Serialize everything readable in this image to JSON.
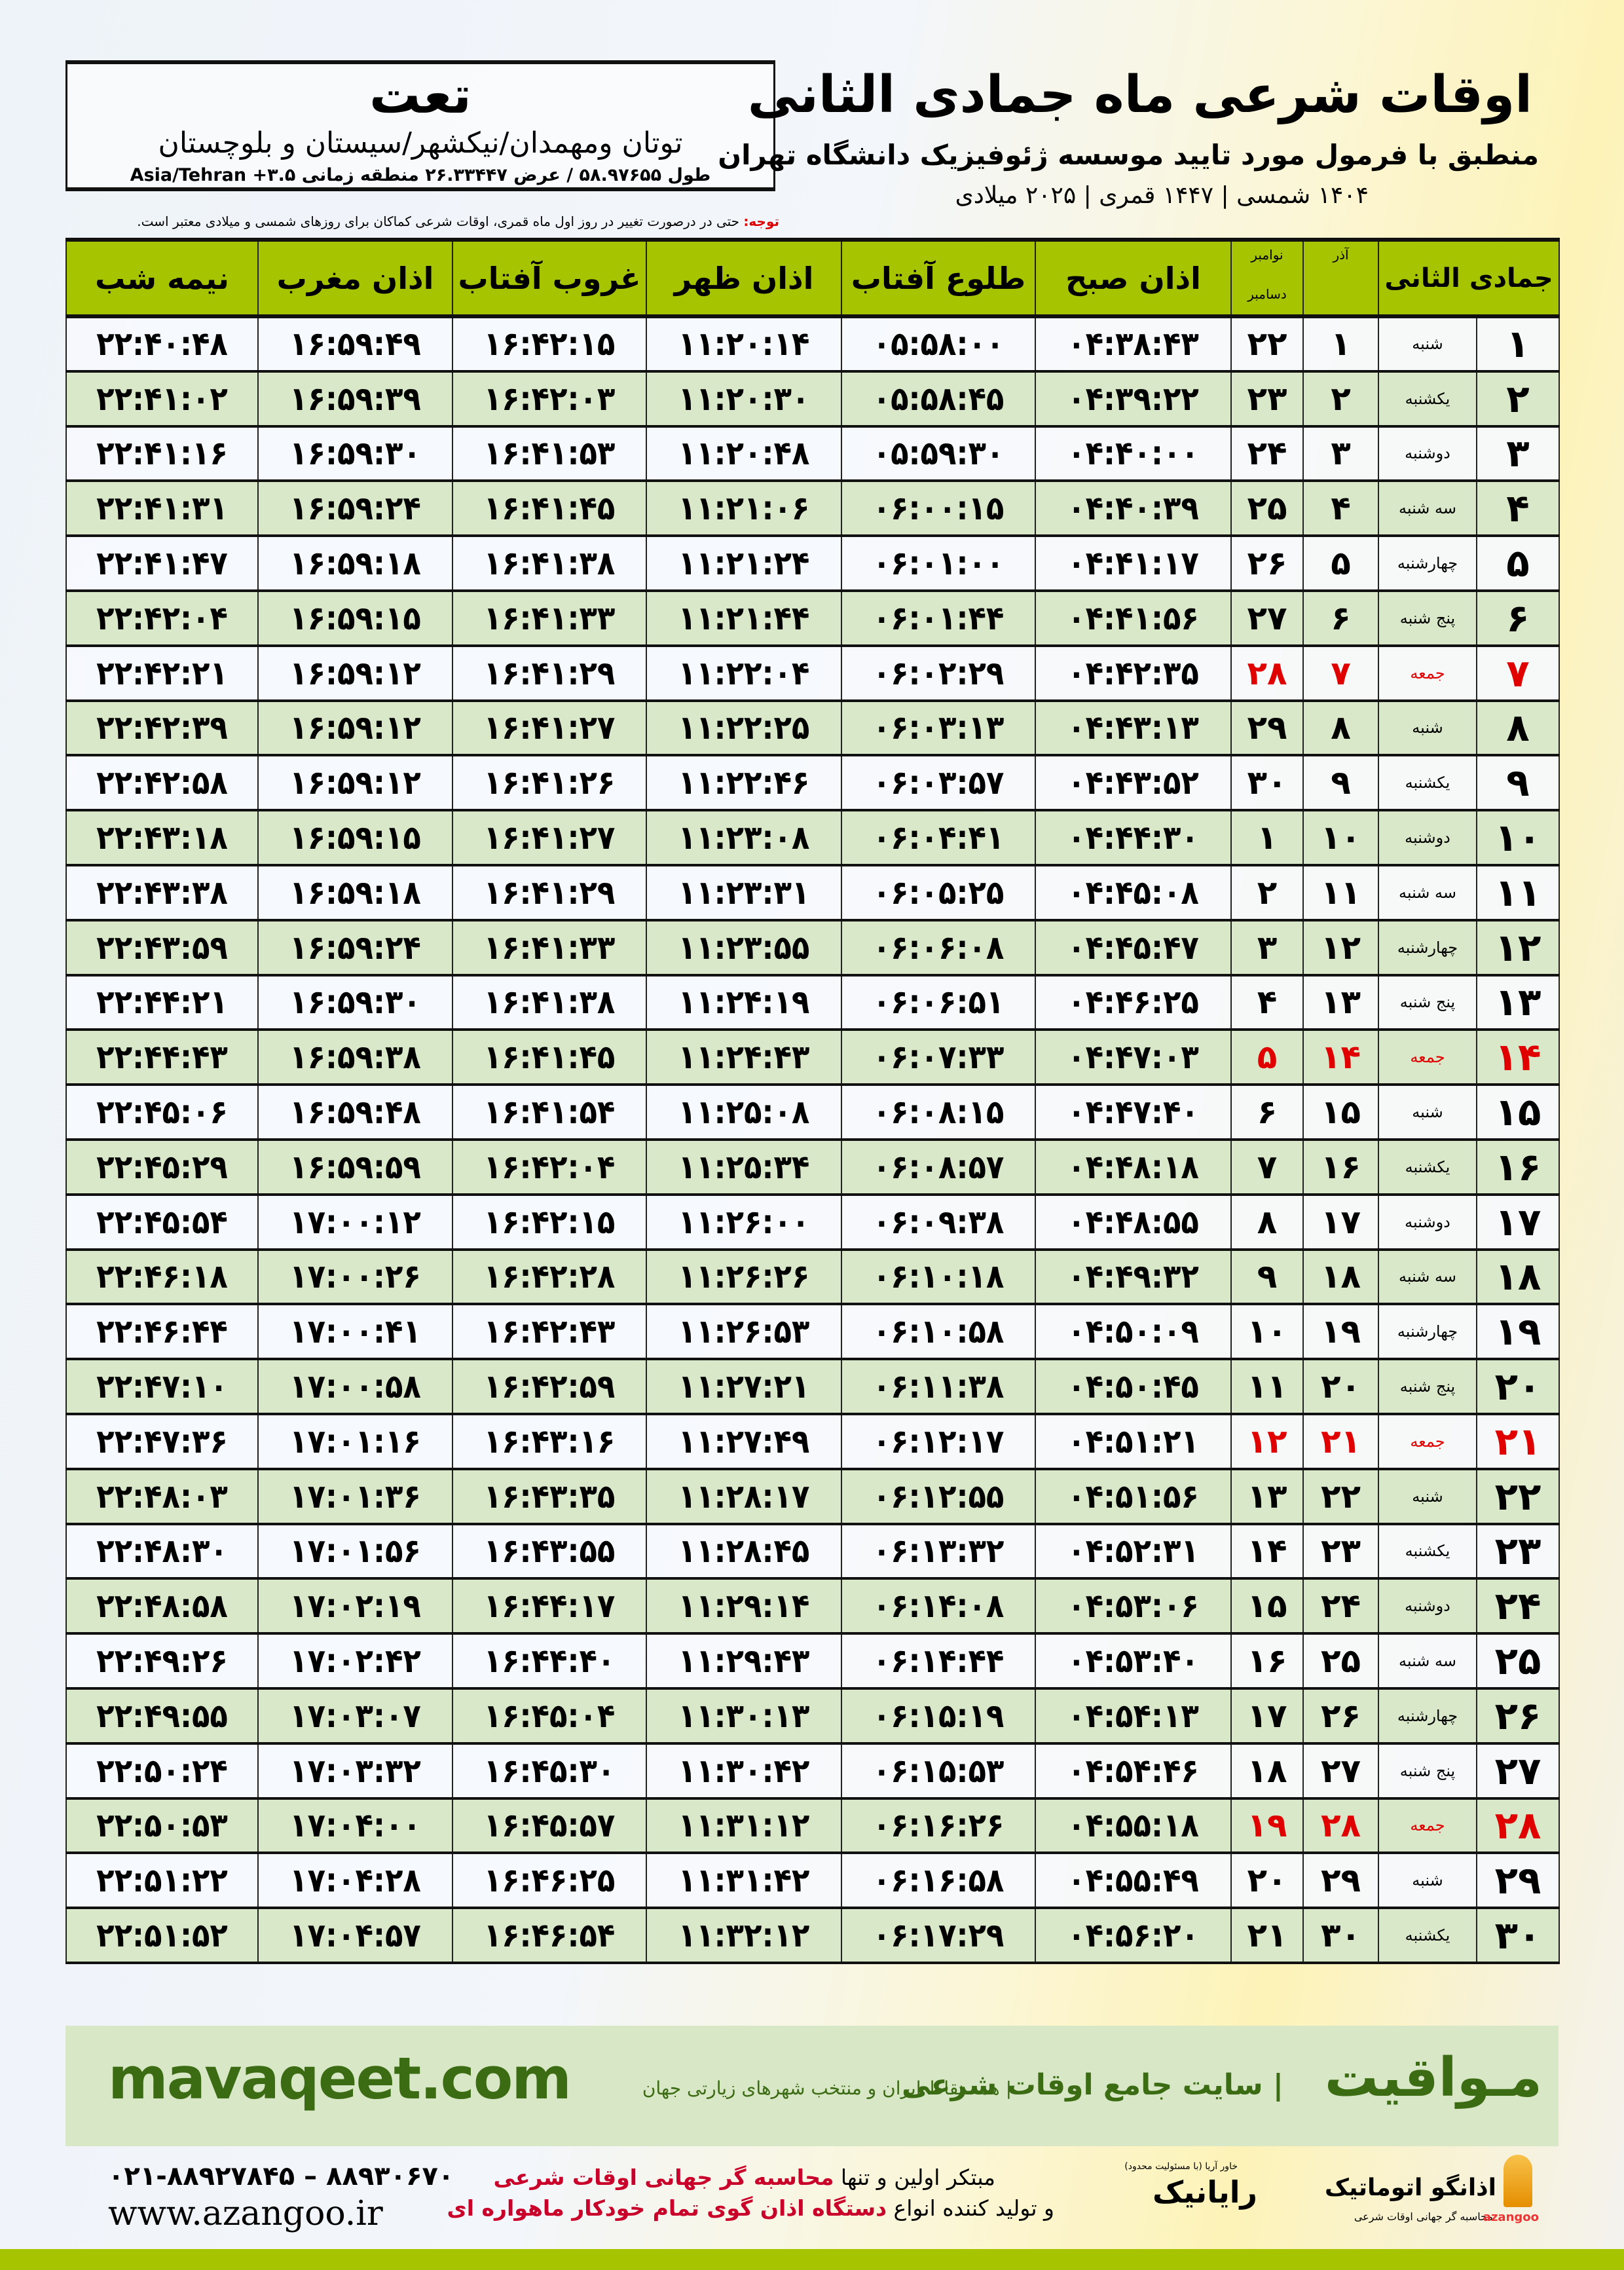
{
  "header": {
    "title": "اوقات شرعی ماه جمادی الثانی",
    "subtitle": "منطبق با فرمول مورد تایید موسسه ژئوفیزیک دانشگاه تهران",
    "years": "۱۴۰۴ شمسی | ۱۴۴۷ قمری | ۲۰۲۵ میلادی"
  },
  "location": {
    "city": "تعت",
    "region": "توتان ومهمدان/نیکشهر/سیستان و بلوچستان",
    "coords": "طول ۵۸.۹۷۶۵۵ / عرض ۲۶.۳۳۴۴۷ منطقه زمانی ۳.۵+ Asia/Tehran"
  },
  "note": {
    "label": "توجه:",
    "text": " حتی در درصورت تغییر در روز اول ماه قمری، اوقات شرعی کماکان برای روزهای شمسی و میلادی معتبر است."
  },
  "colors": {
    "header_green": "#a6c400",
    "row_alt": "#d9e8c8",
    "friday": "#e00000",
    "brand_green": "#3b6b12"
  },
  "table": {
    "headers": {
      "day": "جمادی الثانی",
      "azar": "آذر",
      "nov": "نوامبر",
      "dec": "دسامبر",
      "sobh": "اذان صبح",
      "tolu": "طلوع آفتاب",
      "zohr": "اذان ظهر",
      "ghorub": "غروب آفتاب",
      "maghreb": "اذان مغرب",
      "nime": "نیمه شب"
    },
    "rows": [
      [
        "۱",
        "شنبه",
        "۱",
        "۲۲",
        "۰۴:۳۸:۴۳",
        "۰۵:۵۸:۰۰",
        "۱۱:۲۰:۱۴",
        "۱۶:۴۲:۱۵",
        "۱۶:۵۹:۴۹",
        "۲۲:۴۰:۴۸"
      ],
      [
        "۲",
        "یکشنبه",
        "۲",
        "۲۳",
        "۰۴:۳۹:۲۲",
        "۰۵:۵۸:۴۵",
        "۱۱:۲۰:۳۰",
        "۱۶:۴۲:۰۳",
        "۱۶:۵۹:۳۹",
        "۲۲:۴۱:۰۲"
      ],
      [
        "۳",
        "دوشنبه",
        "۳",
        "۲۴",
        "۰۴:۴۰:۰۰",
        "۰۵:۵۹:۳۰",
        "۱۱:۲۰:۴۸",
        "۱۶:۴۱:۵۳",
        "۱۶:۵۹:۳۰",
        "۲۲:۴۱:۱۶"
      ],
      [
        "۴",
        "سه شنبه",
        "۴",
        "۲۵",
        "۰۴:۴۰:۳۹",
        "۰۶:۰۰:۱۵",
        "۱۱:۲۱:۰۶",
        "۱۶:۴۱:۴۵",
        "۱۶:۵۹:۲۴",
        "۲۲:۴۱:۳۱"
      ],
      [
        "۵",
        "چهارشنبه",
        "۵",
        "۲۶",
        "۰۴:۴۱:۱۷",
        "۰۶:۰۱:۰۰",
        "۱۱:۲۱:۲۴",
        "۱۶:۴۱:۳۸",
        "۱۶:۵۹:۱۸",
        "۲۲:۴۱:۴۷"
      ],
      [
        "۶",
        "پنج شنبه",
        "۶",
        "۲۷",
        "۰۴:۴۱:۵۶",
        "۰۶:۰۱:۴۴",
        "۱۱:۲۱:۴۴",
        "۱۶:۴۱:۳۳",
        "۱۶:۵۹:۱۵",
        "۲۲:۴۲:۰۴"
      ],
      [
        "۷",
        "جمعه",
        "۷",
        "۲۸",
        "۰۴:۴۲:۳۵",
        "۰۶:۰۲:۲۹",
        "۱۱:۲۲:۰۴",
        "۱۶:۴۱:۲۹",
        "۱۶:۵۹:۱۲",
        "۲۲:۴۲:۲۱"
      ],
      [
        "۸",
        "شنبه",
        "۸",
        "۲۹",
        "۰۴:۴۳:۱۳",
        "۰۶:۰۳:۱۳",
        "۱۱:۲۲:۲۵",
        "۱۶:۴۱:۲۷",
        "۱۶:۵۹:۱۲",
        "۲۲:۴۲:۳۹"
      ],
      [
        "۹",
        "یکشنبه",
        "۹",
        "۳۰",
        "۰۴:۴۳:۵۲",
        "۰۶:۰۳:۵۷",
        "۱۱:۲۲:۴۶",
        "۱۶:۴۱:۲۶",
        "۱۶:۵۹:۱۲",
        "۲۲:۴۲:۵۸"
      ],
      [
        "۱۰",
        "دوشنبه",
        "۱۰",
        "۱",
        "۰۴:۴۴:۳۰",
        "۰۶:۰۴:۴۱",
        "۱۱:۲۳:۰۸",
        "۱۶:۴۱:۲۷",
        "۱۶:۵۹:۱۵",
        "۲۲:۴۳:۱۸"
      ],
      [
        "۱۱",
        "سه شنبه",
        "۱۱",
        "۲",
        "۰۴:۴۵:۰۸",
        "۰۶:۰۵:۲۵",
        "۱۱:۲۳:۳۱",
        "۱۶:۴۱:۲۹",
        "۱۶:۵۹:۱۸",
        "۲۲:۴۳:۳۸"
      ],
      [
        "۱۲",
        "چهارشنبه",
        "۱۲",
        "۳",
        "۰۴:۴۵:۴۷",
        "۰۶:۰۶:۰۸",
        "۱۱:۲۳:۵۵",
        "۱۶:۴۱:۳۳",
        "۱۶:۵۹:۲۴",
        "۲۲:۴۳:۵۹"
      ],
      [
        "۱۳",
        "پنج شنبه",
        "۱۳",
        "۴",
        "۰۴:۴۶:۲۵",
        "۰۶:۰۶:۵۱",
        "۱۱:۲۴:۱۹",
        "۱۶:۴۱:۳۸",
        "۱۶:۵۹:۳۰",
        "۲۲:۴۴:۲۱"
      ],
      [
        "۱۴",
        "جمعه",
        "۱۴",
        "۵",
        "۰۴:۴۷:۰۳",
        "۰۶:۰۷:۳۳",
        "۱۱:۲۴:۴۳",
        "۱۶:۴۱:۴۵",
        "۱۶:۵۹:۳۸",
        "۲۲:۴۴:۴۳"
      ],
      [
        "۱۵",
        "شنبه",
        "۱۵",
        "۶",
        "۰۴:۴۷:۴۰",
        "۰۶:۰۸:۱۵",
        "۱۱:۲۵:۰۸",
        "۱۶:۴۱:۵۴",
        "۱۶:۵۹:۴۸",
        "۲۲:۴۵:۰۶"
      ],
      [
        "۱۶",
        "یکشنبه",
        "۱۶",
        "۷",
        "۰۴:۴۸:۱۸",
        "۰۶:۰۸:۵۷",
        "۱۱:۲۵:۳۴",
        "۱۶:۴۲:۰۴",
        "۱۶:۵۹:۵۹",
        "۲۲:۴۵:۲۹"
      ],
      [
        "۱۷",
        "دوشنبه",
        "۱۷",
        "۸",
        "۰۴:۴۸:۵۵",
        "۰۶:۰۹:۳۸",
        "۱۱:۲۶:۰۰",
        "۱۶:۴۲:۱۵",
        "۱۷:۰۰:۱۲",
        "۲۲:۴۵:۵۴"
      ],
      [
        "۱۸",
        "سه شنبه",
        "۱۸",
        "۹",
        "۰۴:۴۹:۳۲",
        "۰۶:۱۰:۱۸",
        "۱۱:۲۶:۲۶",
        "۱۶:۴۲:۲۸",
        "۱۷:۰۰:۲۶",
        "۲۲:۴۶:۱۸"
      ],
      [
        "۱۹",
        "چهارشنبه",
        "۱۹",
        "۱۰",
        "۰۴:۵۰:۰۹",
        "۰۶:۱۰:۵۸",
        "۱۱:۲۶:۵۳",
        "۱۶:۴۲:۴۳",
        "۱۷:۰۰:۴۱",
        "۲۲:۴۶:۴۴"
      ],
      [
        "۲۰",
        "پنج شنبه",
        "۲۰",
        "۱۱",
        "۰۴:۵۰:۴۵",
        "۰۶:۱۱:۳۸",
        "۱۱:۲۷:۲۱",
        "۱۶:۴۲:۵۹",
        "۱۷:۰۰:۵۸",
        "۲۲:۴۷:۱۰"
      ],
      [
        "۲۱",
        "جمعه",
        "۲۱",
        "۱۲",
        "۰۴:۵۱:۲۱",
        "۰۶:۱۲:۱۷",
        "۱۱:۲۷:۴۹",
        "۱۶:۴۳:۱۶",
        "۱۷:۰۱:۱۶",
        "۲۲:۴۷:۳۶"
      ],
      [
        "۲۲",
        "شنبه",
        "۲۲",
        "۱۳",
        "۰۴:۵۱:۵۶",
        "۰۶:۱۲:۵۵",
        "۱۱:۲۸:۱۷",
        "۱۶:۴۳:۳۵",
        "۱۷:۰۱:۳۶",
        "۲۲:۴۸:۰۳"
      ],
      [
        "۲۳",
        "یکشنبه",
        "۲۳",
        "۱۴",
        "۰۴:۵۲:۳۱",
        "۰۶:۱۳:۳۲",
        "۱۱:۲۸:۴۵",
        "۱۶:۴۳:۵۵",
        "۱۷:۰۱:۵۶",
        "۲۲:۴۸:۳۰"
      ],
      [
        "۲۴",
        "دوشنبه",
        "۲۴",
        "۱۵",
        "۰۴:۵۳:۰۶",
        "۰۶:۱۴:۰۸",
        "۱۱:۲۹:۱۴",
        "۱۶:۴۴:۱۷",
        "۱۷:۰۲:۱۹",
        "۲۲:۴۸:۵۸"
      ],
      [
        "۲۵",
        "سه شنبه",
        "۲۵",
        "۱۶",
        "۰۴:۵۳:۴۰",
        "۰۶:۱۴:۴۴",
        "۱۱:۲۹:۴۳",
        "۱۶:۴۴:۴۰",
        "۱۷:۰۲:۴۲",
        "۲۲:۴۹:۲۶"
      ],
      [
        "۲۶",
        "چهارشنبه",
        "۲۶",
        "۱۷",
        "۰۴:۵۴:۱۳",
        "۰۶:۱۵:۱۹",
        "۱۱:۳۰:۱۳",
        "۱۶:۴۵:۰۴",
        "۱۷:۰۳:۰۷",
        "۲۲:۴۹:۵۵"
      ],
      [
        "۲۷",
        "پنج شنبه",
        "۲۷",
        "۱۸",
        "۰۴:۵۴:۴۶",
        "۰۶:۱۵:۵۳",
        "۱۱:۳۰:۴۲",
        "۱۶:۴۵:۳۰",
        "۱۷:۰۳:۳۲",
        "۲۲:۵۰:۲۴"
      ],
      [
        "۲۸",
        "جمعه",
        "۲۸",
        "۱۹",
        "۰۴:۵۵:۱۸",
        "۰۶:۱۶:۲۶",
        "۱۱:۳۱:۱۲",
        "۱۶:۴۵:۵۷",
        "۱۷:۰۴:۰۰",
        "۲۲:۵۰:۵۳"
      ],
      [
        "۲۹",
        "شنبه",
        "۲۹",
        "۲۰",
        "۰۴:۵۵:۴۹",
        "۰۶:۱۶:۵۸",
        "۱۱:۳۱:۴۲",
        "۱۶:۴۶:۲۵",
        "۱۷:۰۴:۲۸",
        "۲۲:۵۱:۲۲"
      ],
      [
        "۳۰",
        "یکشنبه",
        "۳۰",
        "۲۱",
        "۰۴:۵۶:۲۰",
        "۰۶:۱۷:۲۹",
        "۱۱:۳۲:۱۲",
        "۱۶:۴۶:۵۴",
        "۱۷:۰۴:۵۷",
        "۲۲:۵۱:۵۲"
      ]
    ]
  },
  "banner": {
    "brand": "مـواقیت",
    "tagline": "| سایت جامع اوقات شرعی",
    "sub": "| همه نقاط ایران و منتخب شهرهای زیارتی جهان",
    "site": "mavaqeet.com"
  },
  "footer": {
    "phone": "۰۲۱-۸۸۹۲۷۸۴۵ – ۸۸۹۳۰۶۷۰",
    "web": "www.azangoo.ir",
    "promo1_a": "مبتکر اولین و تنها ",
    "promo1_b": "محاسبه گر جهانی اوقات شرعی",
    "promo2_a": "و تولید کننده انواع ",
    "promo2_b": "دستگاه اذان گوی تمام خودکار ماهواره ای",
    "rayanik": "رایانیک",
    "rayanik_small": "(با مسئولیت محدود) خاور آریا",
    "azan_logo": "اذانگو اتوماتیک",
    "azan_sub": "محاسبه گر جهانی اوقات شرعی",
    "azan_latin": "azangoo"
  }
}
